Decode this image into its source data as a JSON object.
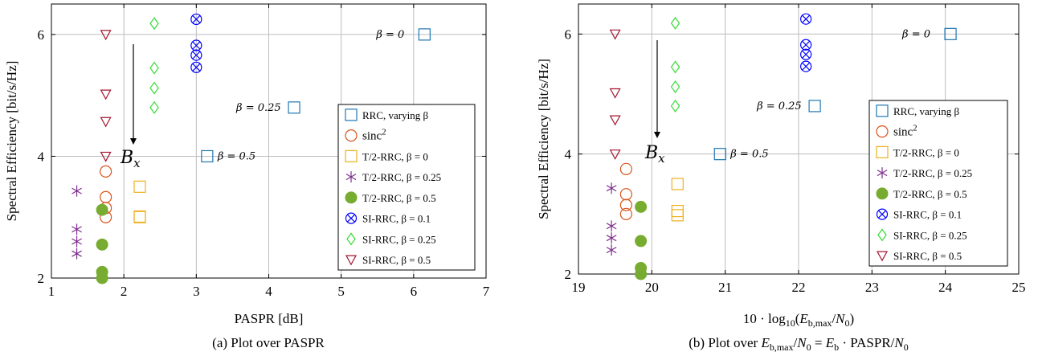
{
  "colors": {
    "rrc": "#1f77b4",
    "sinc2": "#d95319",
    "t2_0": "#edb120",
    "t2_025": "#7e2f8e",
    "t2_05": "#77ac30",
    "si_01": "#0000ff",
    "si_025": "#33dd33",
    "si_05": "#a2142f"
  },
  "chart_data": [
    {
      "type": "scatter",
      "caption": "(a) Plot over PASPR",
      "xlabel": "PASPR [dB]",
      "ylabel": "Spectral Efficiency [bit/s/Hz]",
      "xlim": [
        1,
        7
      ],
      "ylim": [
        2,
        6.5
      ],
      "xticks": [
        "1",
        "2",
        "3",
        "4",
        "5",
        "6",
        "7"
      ],
      "yticks": [
        "2",
        "4",
        "6"
      ],
      "grid": true,
      "legend_position": "right",
      "arrow_label": "B_x",
      "series": [
        {
          "key": "rrc",
          "name": "RRC, varying β",
          "marker": "square",
          "x": [
            6.15,
            4.35,
            3.15
          ],
          "y": [
            6.0,
            4.8,
            4.0
          ],
          "labels": [
            "β = 0",
            "β = 0.25",
            "β = 0.5"
          ]
        },
        {
          "key": "sinc2",
          "name": "sinc²",
          "marker": "circle",
          "x": [
            1.75,
            1.75,
            1.75,
            1.75
          ],
          "y": [
            3.75,
            3.33,
            3.15,
            3.0
          ]
        },
        {
          "key": "t2_0",
          "name": "T/2-RRC, β = 0",
          "marker": "square",
          "x": [
            2.22,
            2.22,
            2.22
          ],
          "y": [
            3.5,
            3.01,
            3.0
          ]
        },
        {
          "key": "t2_025",
          "name": "T/2-RRC, β = 0.25",
          "marker": "asterisk",
          "x": [
            1.35,
            1.35,
            1.35,
            1.35
          ],
          "y": [
            3.43,
            2.8,
            2.6,
            2.4
          ]
        },
        {
          "key": "t2_05",
          "name": "T/2-RRC, β = 0.5",
          "marker": "filled",
          "x": [
            1.7,
            1.7,
            1.7,
            1.7
          ],
          "y": [
            3.12,
            2.55,
            2.1,
            2.0
          ]
        },
        {
          "key": "si_01",
          "name": "SI-RRC, β = 0.1",
          "marker": "otimes",
          "x": [
            3.0,
            3.0,
            3.0,
            3.0
          ],
          "y": [
            6.25,
            5.82,
            5.66,
            5.46
          ]
        },
        {
          "key": "si_025",
          "name": "SI-RRC, β = 0.25",
          "marker": "diamond",
          "x": [
            2.42,
            2.42,
            2.42,
            2.42
          ],
          "y": [
            6.18,
            5.45,
            5.12,
            4.8
          ]
        },
        {
          "key": "si_05",
          "name": "SI-RRC, β = 0.5",
          "marker": "triangle",
          "x": [
            1.75,
            1.75,
            1.75,
            1.75
          ],
          "y": [
            6.0,
            5.02,
            4.57,
            4.0
          ]
        }
      ]
    },
    {
      "type": "scatter",
      "caption": "(b) Plot over E_b,max/N_0 = E_b · PASPR/N_0",
      "xlabel": "10 · log10(E_b,max/N_0)",
      "ylabel": "Spectral Efficiency [bit/s/Hz]",
      "xlim": [
        19,
        25
      ],
      "ylim": [
        2,
        6.5
      ],
      "xticks": [
        "19",
        "20",
        "21",
        "22",
        "23",
        "24",
        "25"
      ],
      "yticks": [
        "2",
        "4",
        "6"
      ],
      "grid": true,
      "legend_position": "right",
      "arrow_label": "B_x",
      "series": [
        {
          "key": "rrc",
          "name": "RRC, varying β",
          "marker": "square",
          "x": [
            24.07,
            22.22,
            20.93
          ],
          "y": [
            6.0,
            4.8,
            4.0
          ],
          "labels": [
            "β = 0",
            "β = 0.25",
            "β = 0.5"
          ]
        },
        {
          "key": "sinc2",
          "name": "sinc²",
          "marker": "circle",
          "x": [
            19.65,
            19.65,
            19.65,
            19.65
          ],
          "y": [
            3.75,
            3.33,
            3.15,
            3.0
          ]
        },
        {
          "key": "t2_0",
          "name": "T/2-RRC, β = 0",
          "marker": "square",
          "x": [
            20.35,
            20.35,
            20.35
          ],
          "y": [
            3.5,
            3.05,
            2.98
          ]
        },
        {
          "key": "t2_025",
          "name": "T/2-RRC, β = 0.25",
          "marker": "asterisk",
          "x": [
            19.45,
            19.45,
            19.45,
            19.45
          ],
          "y": [
            3.43,
            2.8,
            2.6,
            2.4
          ]
        },
        {
          "key": "t2_05",
          "name": "T/2-RRC, β = 0.5",
          "marker": "filled",
          "x": [
            19.85,
            19.85,
            19.85,
            19.85
          ],
          "y": [
            3.12,
            2.55,
            2.1,
            2.0
          ]
        },
        {
          "key": "si_01",
          "name": "SI-RRC, β = 0.1",
          "marker": "otimes",
          "x": [
            22.1,
            22.1,
            22.1,
            22.1
          ],
          "y": [
            6.25,
            5.82,
            5.66,
            5.46
          ]
        },
        {
          "key": "si_025",
          "name": "SI-RRC, β = 0.25",
          "marker": "diamond",
          "x": [
            20.32,
            20.32,
            20.32,
            20.32
          ],
          "y": [
            6.18,
            5.45,
            5.12,
            4.8
          ]
        },
        {
          "key": "si_05",
          "name": "SI-RRC, β = 0.5",
          "marker": "triangle",
          "x": [
            19.5,
            19.5,
            19.5,
            19.5
          ],
          "y": [
            6.0,
            5.02,
            4.57,
            4.0
          ]
        }
      ]
    }
  ]
}
